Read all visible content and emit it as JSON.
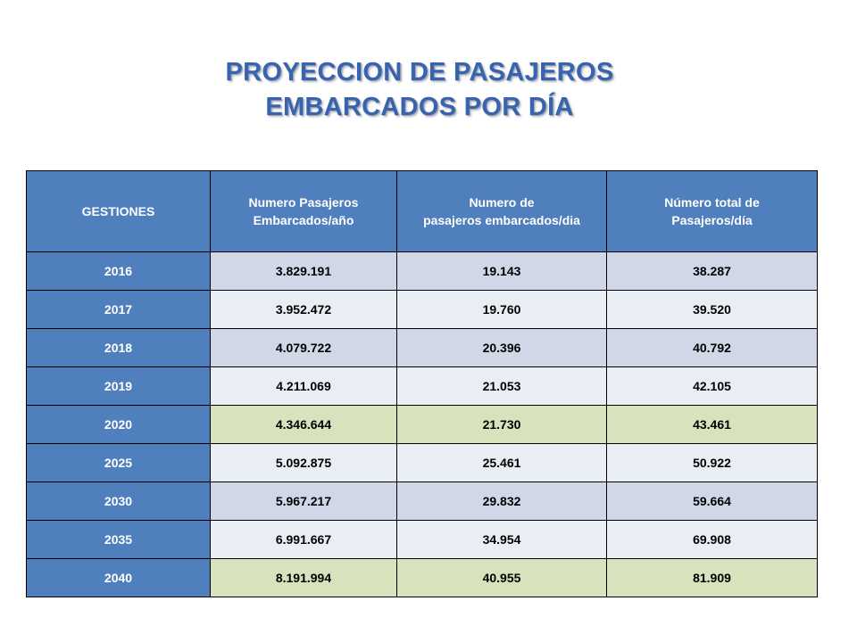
{
  "title": {
    "line1": "PROYECCION DE PASAJEROS",
    "line2": "EMBARCADOS POR DÍA"
  },
  "table": {
    "headers": [
      {
        "line1": "GESTIONES",
        "line2": ""
      },
      {
        "line1": "Numero Pasajeros",
        "line2": "Embarcados/año"
      },
      {
        "line1": "Numero de",
        "line2": "pasajeros embarcados/dia"
      },
      {
        "line1": "Número total de",
        "line2": "Pasajeros/día"
      }
    ],
    "rows": [
      {
        "year": "2016",
        "annual": "3.829.191",
        "daily": "19.143",
        "total_daily": "38.287",
        "band": "a"
      },
      {
        "year": "2017",
        "annual": "3.952.472",
        "daily": "19.760",
        "total_daily": "39.520",
        "band": "b"
      },
      {
        "year": "2018",
        "annual": "4.079.722",
        "daily": "20.396",
        "total_daily": "40.792",
        "band": "a"
      },
      {
        "year": "2019",
        "annual": "4.211.069",
        "daily": "21.053",
        "total_daily": "42.105",
        "band": "b"
      },
      {
        "year": "2020",
        "annual": "4.346.644",
        "daily": "21.730",
        "total_daily": "43.461",
        "band": "c"
      },
      {
        "year": "2025",
        "annual": "5.092.875",
        "daily": "25.461",
        "total_daily": "50.922",
        "band": "b"
      },
      {
        "year": "2030",
        "annual": "5.967.217",
        "daily": "29.832",
        "total_daily": "59.664",
        "band": "a"
      },
      {
        "year": "2035",
        "annual": "6.991.667",
        "daily": "34.954",
        "total_daily": "69.908",
        "band": "b"
      },
      {
        "year": "2040",
        "annual": "8.191.994",
        "daily": "40.955",
        "total_daily": "81.909",
        "band": "c"
      }
    ]
  },
  "colors": {
    "title": "#3a63ad",
    "header_bg": "#4f7fbd",
    "band_a": "#d0d8e8",
    "band_b": "#e9edf4",
    "band_highlight": "#d6e3bc"
  }
}
